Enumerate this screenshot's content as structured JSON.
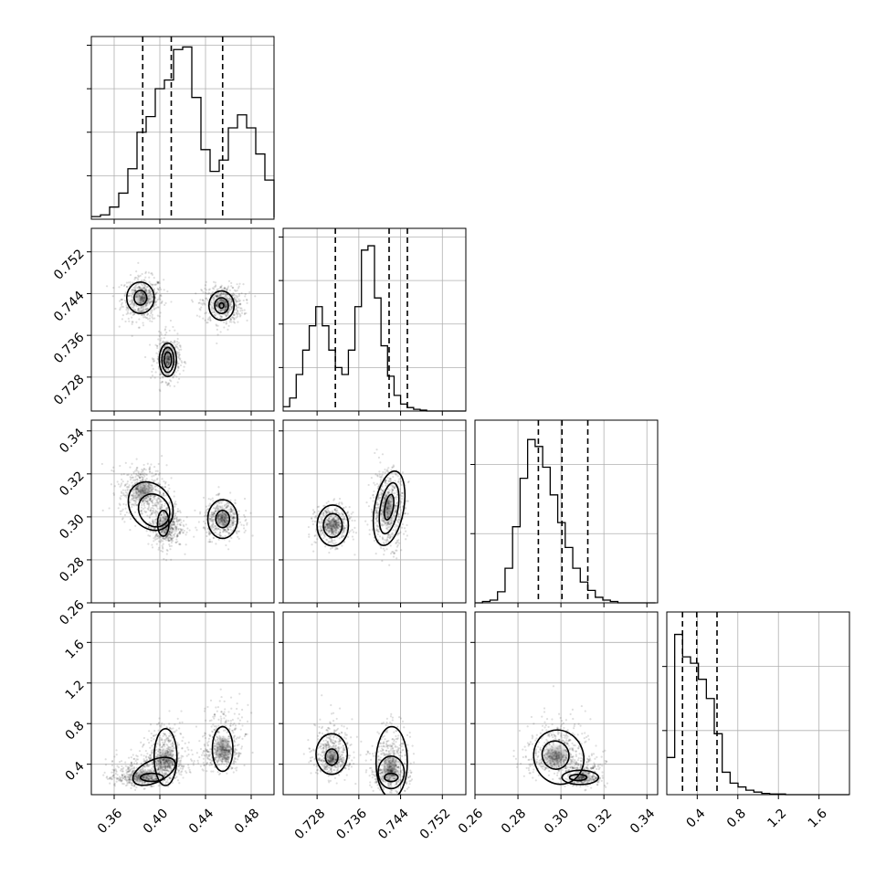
{
  "chart_data": {
    "type": "corner",
    "grid": true,
    "parameters": [
      {
        "range": [
          0.34,
          0.5
        ],
        "ticks": [
          0.36,
          0.4,
          0.44,
          0.48
        ],
        "tick_labels": [
          "0.36",
          "0.40",
          "0.44",
          "0.48"
        ],
        "quantiles": [
          0.385,
          0.41,
          0.455
        ],
        "hist_ticks": [
          0,
          50,
          100,
          150,
          200
        ],
        "hist_ymax": 210,
        "hist_edges_start": 0.34,
        "hist_bin_width": 0.008,
        "hist_counts": [
          3,
          5,
          14,
          30,
          58,
          100,
          118,
          150,
          160,
          195,
          198,
          140,
          80,
          55,
          68,
          105,
          120,
          105,
          75,
          45,
          18,
          5,
          2
        ]
      },
      {
        "range": [
          0.7215,
          0.7565
        ],
        "ticks": [
          0.728,
          0.736,
          0.744,
          0.752
        ],
        "tick_labels": [
          "0.728",
          "0.736",
          "0.744",
          "0.752"
        ],
        "quantiles": [
          0.7315,
          0.7418,
          0.7453
        ],
        "hist_ticks": [
          0,
          50,
          100,
          150,
          200
        ],
        "hist_ymax": 210,
        "hist_edges_start": 0.7215,
        "hist_bin_width": 0.00125,
        "hist_counts": [
          5,
          15,
          42,
          70,
          98,
          120,
          98,
          70,
          50,
          42,
          70,
          120,
          185,
          190,
          130,
          75,
          40,
          18,
          8,
          4,
          2,
          1,
          0,
          0,
          0,
          0,
          0,
          0
        ]
      },
      {
        "range": [
          0.26,
          0.345
        ],
        "ticks": [
          0.26,
          0.28,
          0.3,
          0.32,
          0.34
        ],
        "tick_labels": [
          "0.26",
          "0.28",
          "0.30",
          "0.32",
          "0.34"
        ],
        "quantiles": [
          0.2895,
          0.3005,
          0.3125
        ],
        "hist_ticks": [
          0,
          50,
          100
        ],
        "hist_ymax": 132,
        "hist_edges_start": 0.26,
        "hist_bin_width": 0.0035,
        "hist_counts": [
          0,
          1,
          2,
          8,
          25,
          55,
          90,
          118,
          113,
          98,
          78,
          58,
          40,
          25,
          15,
          9,
          4,
          2,
          1,
          0,
          0,
          0,
          0,
          0
        ]
      },
      {
        "range": [
          0.1,
          1.9
        ],
        "ticks": [
          0.4,
          0.8,
          1.2,
          1.6
        ],
        "tick_labels": [
          "0.4",
          "0.8",
          "1.2",
          "1.6"
        ],
        "quantiles": [
          0.255,
          0.395,
          0.595
        ],
        "hist_ticks": [
          0,
          100,
          200
        ],
        "hist_ymax": 285,
        "hist_edges_start": 0.1,
        "hist_bin_width": 0.078,
        "hist_counts": [
          58,
          250,
          215,
          205,
          180,
          150,
          95,
          35,
          18,
          12,
          7,
          4,
          2,
          1,
          1,
          0,
          0,
          0,
          0,
          0,
          0,
          0,
          0
        ]
      }
    ]
  }
}
